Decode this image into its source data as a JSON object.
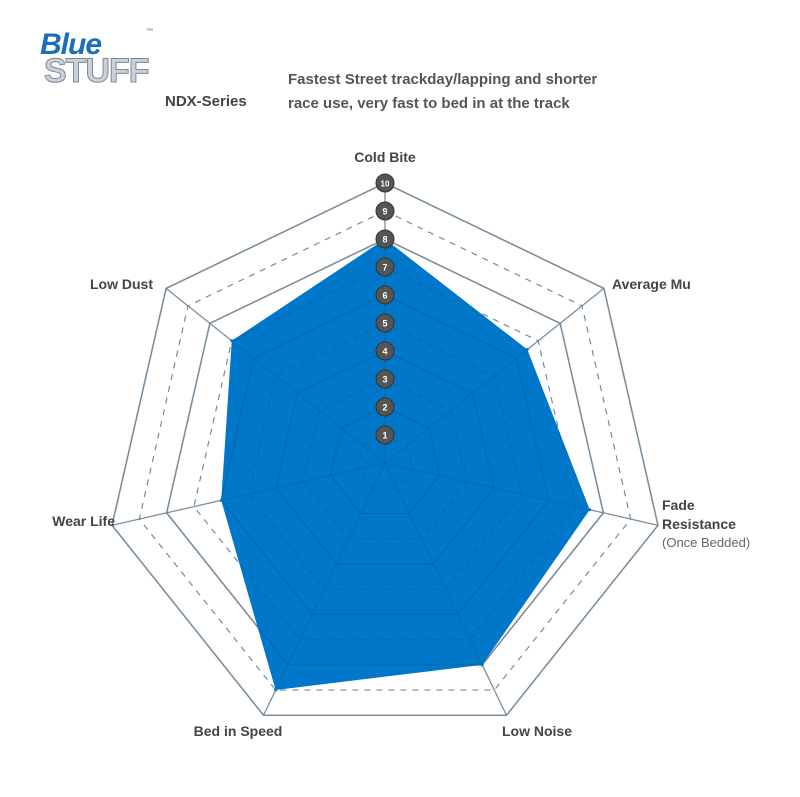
{
  "header": {
    "logo_line1": "Blue",
    "logo_line2": "STUFF",
    "logo_tm": "™",
    "series": "NDX-Series",
    "description_line1": "Fastest Street trackday/lapping and shorter",
    "description_line2": "race use, very fast to bed in at the track"
  },
  "chart_data": {
    "type": "radar",
    "axes": [
      "Cold Bite",
      "Average Mu",
      "Fade Resistance",
      "Low Noise",
      "Bed in Speed",
      "Wear Life",
      "Low Dust"
    ],
    "axis_sublabels": {
      "Fade Resistance": "(Once Bedded)"
    },
    "values": [
      8,
      6.5,
      7.5,
      8,
      9,
      6,
      7
    ],
    "range": [
      0,
      10
    ],
    "tick_labels": [
      "1",
      "2",
      "3",
      "4",
      "5",
      "6",
      "7",
      "8",
      "9",
      "10"
    ],
    "grid": true,
    "fill_color": "#0077c8",
    "grid_color": "#b5b5b5",
    "tick_badge_color": "#555555"
  }
}
